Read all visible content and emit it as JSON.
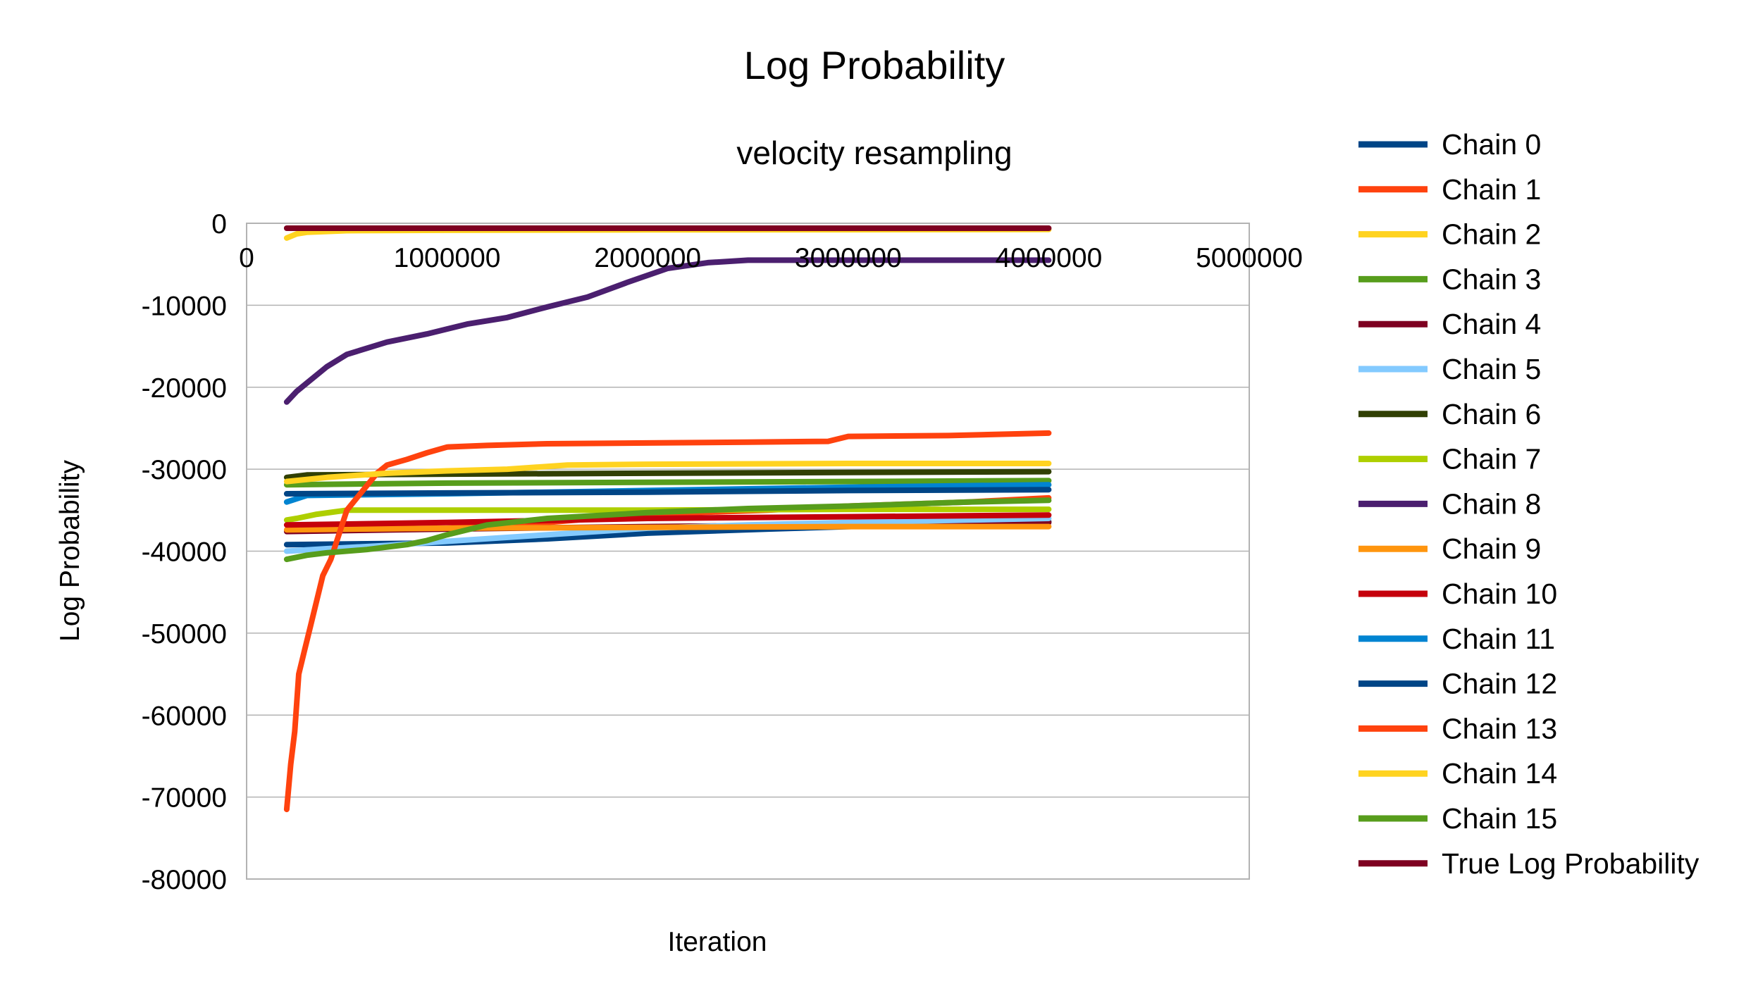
{
  "chart_data": {
    "type": "line",
    "title": "Log Probability",
    "subtitle": "velocity resampling",
    "xlabel": "Iteration",
    "ylabel": "Log Probability",
    "xlim": [
      0,
      5000000
    ],
    "ylim": [
      -80000,
      0
    ],
    "x_ticks": [
      "0",
      "1000000",
      "2000000",
      "3000000",
      "4000000",
      "5000000"
    ],
    "y_ticks": [
      "0",
      "-10000",
      "-20000",
      "-30000",
      "-40000",
      "-50000",
      "-60000",
      "-70000",
      "-80000"
    ],
    "grid": "horizontal",
    "legend_position": "right",
    "series": [
      {
        "name": "Chain 0",
        "color": "#004586",
        "x": [
          200000,
          1000000,
          1500000,
          2000000,
          2600000,
          3000000,
          3600000,
          4000000
        ],
        "y": [
          -39200,
          -39000,
          -38500,
          -37800,
          -37300,
          -37000,
          -36600,
          -36400
        ]
      },
      {
        "name": "Chain 1",
        "color": "#ff420e",
        "x": [
          200000,
          1000000,
          1500000,
          2000000,
          2600000,
          3000000,
          3600000,
          4000000
        ],
        "y": [
          -37500,
          -37200,
          -36500,
          -35500,
          -35000,
          -34500,
          -34000,
          -33500
        ]
      },
      {
        "name": "Chain 2",
        "color": "#ffd320",
        "x": [
          200000,
          250000,
          300000,
          500000,
          1000000,
          2000000,
          3000000,
          4000000
        ],
        "y": [
          -1800,
          -1300,
          -1100,
          -900,
          -850,
          -800,
          -780,
          -760
        ]
      },
      {
        "name": "Chain 3",
        "color": "#579d1c",
        "x": [
          200000,
          1000000,
          2000000,
          3000000,
          4000000
        ],
        "y": [
          -31900,
          -31700,
          -31600,
          -31500,
          -31400
        ]
      },
      {
        "name": "Chain 4",
        "color": "#7e0021",
        "x": [
          200000,
          1000000,
          2000000,
          3000000,
          4000000
        ],
        "y": [
          -37600,
          -37300,
          -37000,
          -36800,
          -36500
        ]
      },
      {
        "name": "Chain 5",
        "color": "#83caff",
        "x": [
          200000,
          400000,
          700000,
          1000000,
          1500000,
          2000000,
          2500000,
          3000000,
          3600000,
          4000000
        ],
        "y": [
          -40000,
          -39700,
          -39300,
          -38800,
          -38000,
          -37200,
          -36800,
          -36500,
          -36200,
          -36000
        ]
      },
      {
        "name": "Chain 6",
        "color": "#314004",
        "x": [
          200000,
          300000,
          1000000,
          2000000,
          3000000,
          4000000
        ],
        "y": [
          -31000,
          -30700,
          -30600,
          -30500,
          -30400,
          -30300
        ]
      },
      {
        "name": "Chain 7",
        "color": "#aecf00",
        "x": [
          200000,
          250000,
          350000,
          500000,
          1000000,
          2000000,
          3000000,
          4000000
        ],
        "y": [
          -36200,
          -36000,
          -35500,
          -35000,
          -35000,
          -35000,
          -34900,
          -34900
        ]
      },
      {
        "name": "Chain 8",
        "color": "#4b1f6f",
        "x": [
          200000,
          250000,
          300000,
          400000,
          500000,
          700000,
          900000,
          1100000,
          1300000,
          1500000,
          1700000,
          1900000,
          2100000,
          2300000,
          2500000,
          3000000,
          4000000
        ],
        "y": [
          -21800,
          -20500,
          -19500,
          -17500,
          -16000,
          -14500,
          -13500,
          -12300,
          -11500,
          -10200,
          -9000,
          -7200,
          -5500,
          -4800,
          -4500,
          -4500,
          -4500
        ]
      },
      {
        "name": "Chain 9",
        "color": "#ff950e",
        "x": [
          200000,
          1000000,
          2000000,
          3000000,
          4000000
        ],
        "y": [
          -37400,
          -37200,
          -37100,
          -37000,
          -37000
        ]
      },
      {
        "name": "Chain 10",
        "color": "#c5000b",
        "x": [
          200000,
          1000000,
          2000000,
          3000000,
          4000000
        ],
        "y": [
          -36800,
          -36500,
          -36000,
          -35800,
          -35600
        ]
      },
      {
        "name": "Chain 11",
        "color": "#0084d1",
        "x": [
          200000,
          300000,
          1000000,
          2000000,
          3000000,
          4000000
        ],
        "y": [
          -34000,
          -33200,
          -33000,
          -32600,
          -32200,
          -31900
        ]
      },
      {
        "name": "Chain 12",
        "color": "#004586",
        "x": [
          200000,
          1000000,
          2000000,
          3000000,
          4000000
        ],
        "y": [
          -33000,
          -32900,
          -32800,
          -32600,
          -32500
        ]
      },
      {
        "name": "Chain 13",
        "color": "#ff420e",
        "x": [
          200000,
          220000,
          240000,
          260000,
          290000,
          320000,
          350000,
          380000,
          420000,
          460000,
          500000,
          550000,
          600000,
          650000,
          700000,
          800000,
          900000,
          1000000,
          1200000,
          1500000,
          2000000,
          2500000,
          2900000,
          3000000,
          3500000,
          4000000
        ],
        "y": [
          -71500,
          -66000,
          -62000,
          -55000,
          -52000,
          -49000,
          -46000,
          -43000,
          -41000,
          -38000,
          -35000,
          -33500,
          -32000,
          -30500,
          -29500,
          -28800,
          -28000,
          -27300,
          -27100,
          -26900,
          -26800,
          -26700,
          -26600,
          -26000,
          -25900,
          -25600
        ]
      },
      {
        "name": "Chain 14",
        "color": "#ffd320",
        "x": [
          200000,
          400000,
          700000,
          1000000,
          1300000,
          1600000,
          2000000,
          3000000,
          4000000
        ],
        "y": [
          -31500,
          -31000,
          -30500,
          -30200,
          -30000,
          -29500,
          -29400,
          -29300,
          -29300
        ]
      },
      {
        "name": "Chain 15",
        "color": "#579d1c",
        "x": [
          200000,
          300000,
          400000,
          600000,
          800000,
          900000,
          1000000,
          1200000,
          1500000,
          2000000,
          2500000,
          3000000,
          3600000,
          4000000
        ],
        "y": [
          -41000,
          -40500,
          -40200,
          -39800,
          -39200,
          -38700,
          -38000,
          -36800,
          -36000,
          -35300,
          -34800,
          -34500,
          -34000,
          -33800
        ]
      },
      {
        "name": "True Log Probability",
        "color": "#7e0021",
        "x": [
          200000,
          4000000
        ],
        "y": [
          -600,
          -600
        ]
      }
    ]
  }
}
